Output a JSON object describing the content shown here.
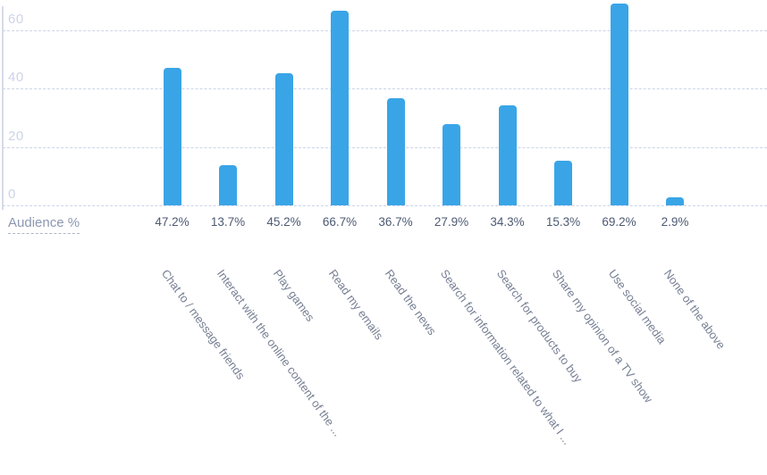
{
  "legend": {
    "label": "Audience %"
  },
  "colors": {
    "bar": "#39a5e7",
    "grid": "#ccd4e8",
    "y_tick_text": "#ccd4e8",
    "value_text": "#4d5a73",
    "category_text": "#767f93",
    "legend_text": "#8b97b0"
  },
  "chart_data": {
    "type": "bar",
    "title": "",
    "xlabel": "",
    "ylabel": "",
    "series_name": "Audience %",
    "categories": [
      "Chat to / message friends",
      "Interact with the online content of the ...",
      "Play games",
      "Read my emails",
      "Read the news",
      "Search for information related to what I ...",
      "Search for products to buy",
      "Share my opinion of a TV show",
      "Use social media",
      "None of the above"
    ],
    "values": [
      47.2,
      13.7,
      45.2,
      66.7,
      36.7,
      27.9,
      34.3,
      15.3,
      69.2,
      2.9
    ],
    "value_labels": [
      "47.2%",
      "13.7%",
      "45.2%",
      "66.7%",
      "36.7%",
      "27.9%",
      "34.3%",
      "15.3%",
      "69.2%",
      "2.9%"
    ],
    "yticks": [
      0,
      20,
      40,
      60
    ],
    "ylim": [
      0,
      70
    ],
    "grid": "horizontal-dashed",
    "legend_position": "bottom-left",
    "bar_color": "#39a5e7"
  }
}
